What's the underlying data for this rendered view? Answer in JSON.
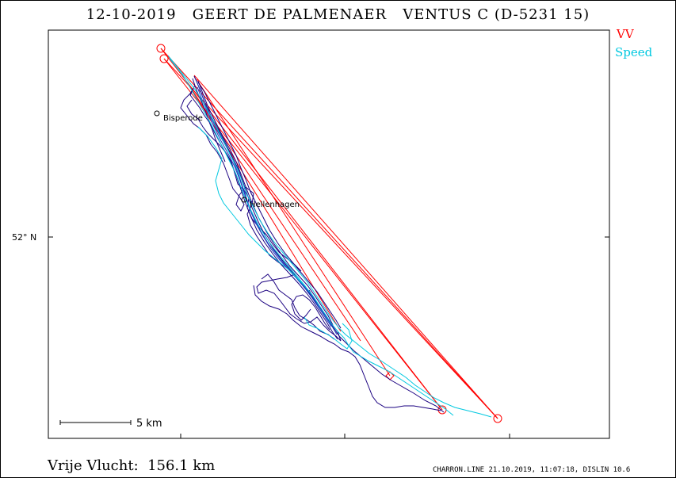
{
  "title": "12-10-2019   GEERT DE PALMENAER   VENTUS C (D-5231 15)",
  "legend": {
    "vv": "VV",
    "speed": "Speed"
  },
  "colors": {
    "vv": "#ff0000",
    "speed": "#00c8e0",
    "track": "#1a0080",
    "track2": "#2040c0"
  },
  "lat_label": "52° N",
  "places": [
    {
      "name": "Bisperode"
    },
    {
      "name": "Hellenhagen"
    }
  ],
  "scale_label": "5 km",
  "distance": "Vrije Vlucht:  156.1 km",
  "footer": "CHARRON.LINE 21.10.2019, 11:07:18, DISLIN 10.6"
}
